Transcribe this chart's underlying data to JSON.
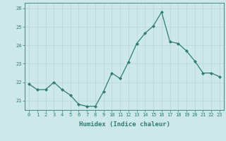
{
  "x": [
    0,
    1,
    2,
    3,
    4,
    5,
    6,
    7,
    8,
    9,
    10,
    11,
    12,
    13,
    14,
    15,
    16,
    17,
    18,
    19,
    20,
    21,
    22,
    23
  ],
  "y": [
    21.9,
    21.6,
    21.6,
    22.0,
    21.6,
    21.3,
    20.8,
    20.7,
    20.7,
    21.5,
    22.5,
    22.2,
    23.1,
    24.1,
    24.65,
    25.05,
    25.8,
    24.2,
    24.1,
    23.7,
    23.15,
    22.5,
    22.5,
    22.3
  ],
  "line_color": "#2e7d6e",
  "marker": "D",
  "marker_size": 2.0,
  "linewidth": 0.9,
  "xlabel": "Humidex (Indice chaleur)",
  "xlabel_fontsize": 6.5,
  "ylabel": "",
  "title": "",
  "xlim": [
    -0.5,
    23.5
  ],
  "ylim": [
    20.5,
    26.3
  ],
  "yticks": [
    21,
    22,
    23,
    24,
    25,
    26
  ],
  "xticks": [
    0,
    1,
    2,
    3,
    4,
    5,
    6,
    7,
    8,
    9,
    10,
    11,
    12,
    13,
    14,
    15,
    16,
    17,
    18,
    19,
    20,
    21,
    22,
    23
  ],
  "bg_color": "#cce8e8",
  "grid_color": "#b8d4d4",
  "tick_color": "#2e7d6e",
  "label_color": "#2e7d6e",
  "tick_fontsize": 5.0,
  "xlabel_bold": true
}
